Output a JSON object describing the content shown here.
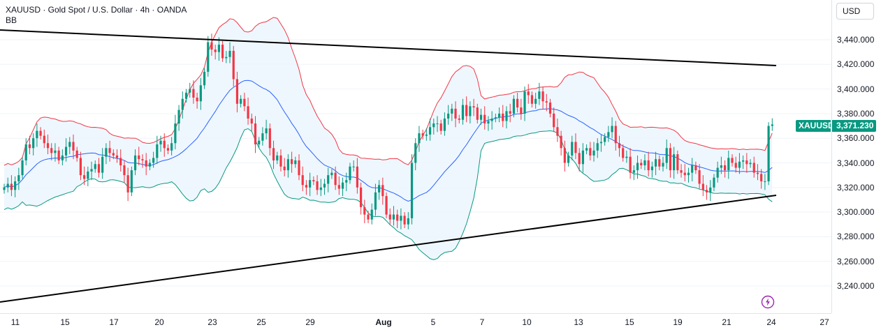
{
  "legend": {
    "title": "XAUUSD · Gold Spot / U.S. Dollar · 4h · OANDA",
    "indicator": "BB"
  },
  "price_axis": {
    "currency": "USD",
    "ticks": [
      "3,440.000",
      "3,420.000",
      "3,400.000",
      "3,380.000",
      "3,360.000",
      "3,340.000",
      "3,320.000",
      "3,300.000",
      "3,280.000",
      "3,260.000",
      "3,240.000"
    ]
  },
  "time_axis": {
    "ticks": [
      "11",
      "15",
      "17",
      "20",
      "23",
      "25",
      "29",
      "Aug",
      "5",
      "7",
      "10",
      "13",
      "15",
      "19",
      "21",
      "24",
      "27"
    ]
  },
  "last_price": {
    "symbol": "XAUUSD",
    "value": "3,371.230",
    "color": "#089981"
  },
  "colors": {
    "up": "#089981",
    "down": "#f23645",
    "bb_upper": "#f23645",
    "bb_basis": "#2962ff",
    "bb_lower": "#089981",
    "bb_fill": "#e3f2fd",
    "trendline": "#000000"
  },
  "icons": {
    "bottom_right": "lightning-icon"
  },
  "chart_data": {
    "type": "candlestick",
    "symbol": "XAUUSD",
    "timeframe": "4h",
    "ylim": [
      3230,
      3468
    ],
    "x_ticks": [
      "11",
      "15",
      "17",
      "20",
      "23",
      "25",
      "29",
      "Aug",
      "5",
      "7",
      "10",
      "13",
      "15",
      "19",
      "21",
      "24",
      "27"
    ],
    "y_ticks": [
      3440,
      3420,
      3400,
      3380,
      3360,
      3340,
      3320,
      3300,
      3280,
      3260,
      3240
    ],
    "close": [
      3320,
      3323,
      3318,
      3325,
      3330,
      3342,
      3355,
      3352,
      3360,
      3366,
      3362,
      3356,
      3352,
      3348,
      3350,
      3342,
      3346,
      3353,
      3357,
      3350,
      3344,
      3330,
      3327,
      3333,
      3335,
      3339,
      3332,
      3345,
      3352,
      3348,
      3346,
      3344,
      3338,
      3330,
      3316,
      3334,
      3346,
      3343,
      3342,
      3337,
      3340,
      3344,
      3355,
      3358,
      3352,
      3350,
      3356,
      3372,
      3383,
      3392,
      3397,
      3400,
      3393,
      3390,
      3403,
      3414,
      3438,
      3432,
      3430,
      3436,
      3425,
      3426,
      3431,
      3408,
      3388,
      3392,
      3386,
      3376,
      3372,
      3355,
      3358,
      3364,
      3368,
      3352,
      3342,
      3346,
      3337,
      3334,
      3343,
      3339,
      3342,
      3330,
      3322,
      3320,
      3326,
      3325,
      3318,
      3320,
      3323,
      3330,
      3332,
      3322,
      3319,
      3324,
      3326,
      3337,
      3337,
      3320,
      3304,
      3298,
      3294,
      3302,
      3316,
      3322,
      3313,
      3298,
      3294,
      3298,
      3293,
      3297,
      3290,
      3295,
      3340,
      3356,
      3364,
      3362,
      3363,
      3369,
      3372,
      3372,
      3366,
      3376,
      3380,
      3384,
      3376,
      3375,
      3387,
      3378,
      3386,
      3385,
      3375,
      3379,
      3372,
      3374,
      3376,
      3377,
      3380,
      3374,
      3382,
      3380,
      3392,
      3385,
      3380,
      3398,
      3395,
      3388,
      3392,
      3398,
      3390,
      3389,
      3380,
      3369,
      3362,
      3352,
      3340,
      3346,
      3357,
      3348,
      3339,
      3350,
      3352,
      3346,
      3350,
      3356,
      3357,
      3361,
      3365,
      3370,
      3356,
      3352,
      3344,
      3345,
      3332,
      3334,
      3340,
      3338,
      3342,
      3334,
      3337,
      3343,
      3337,
      3340,
      3352,
      3334,
      3347,
      3334,
      3332,
      3330,
      3332,
      3338,
      3334,
      3323,
      3318,
      3316,
      3320,
      3328,
      3336,
      3338,
      3334,
      3344,
      3340,
      3336,
      3341,
      3342,
      3339,
      3340,
      3332,
      3331,
      3325,
      3325,
      3370,
      3371.23
    ]
  }
}
